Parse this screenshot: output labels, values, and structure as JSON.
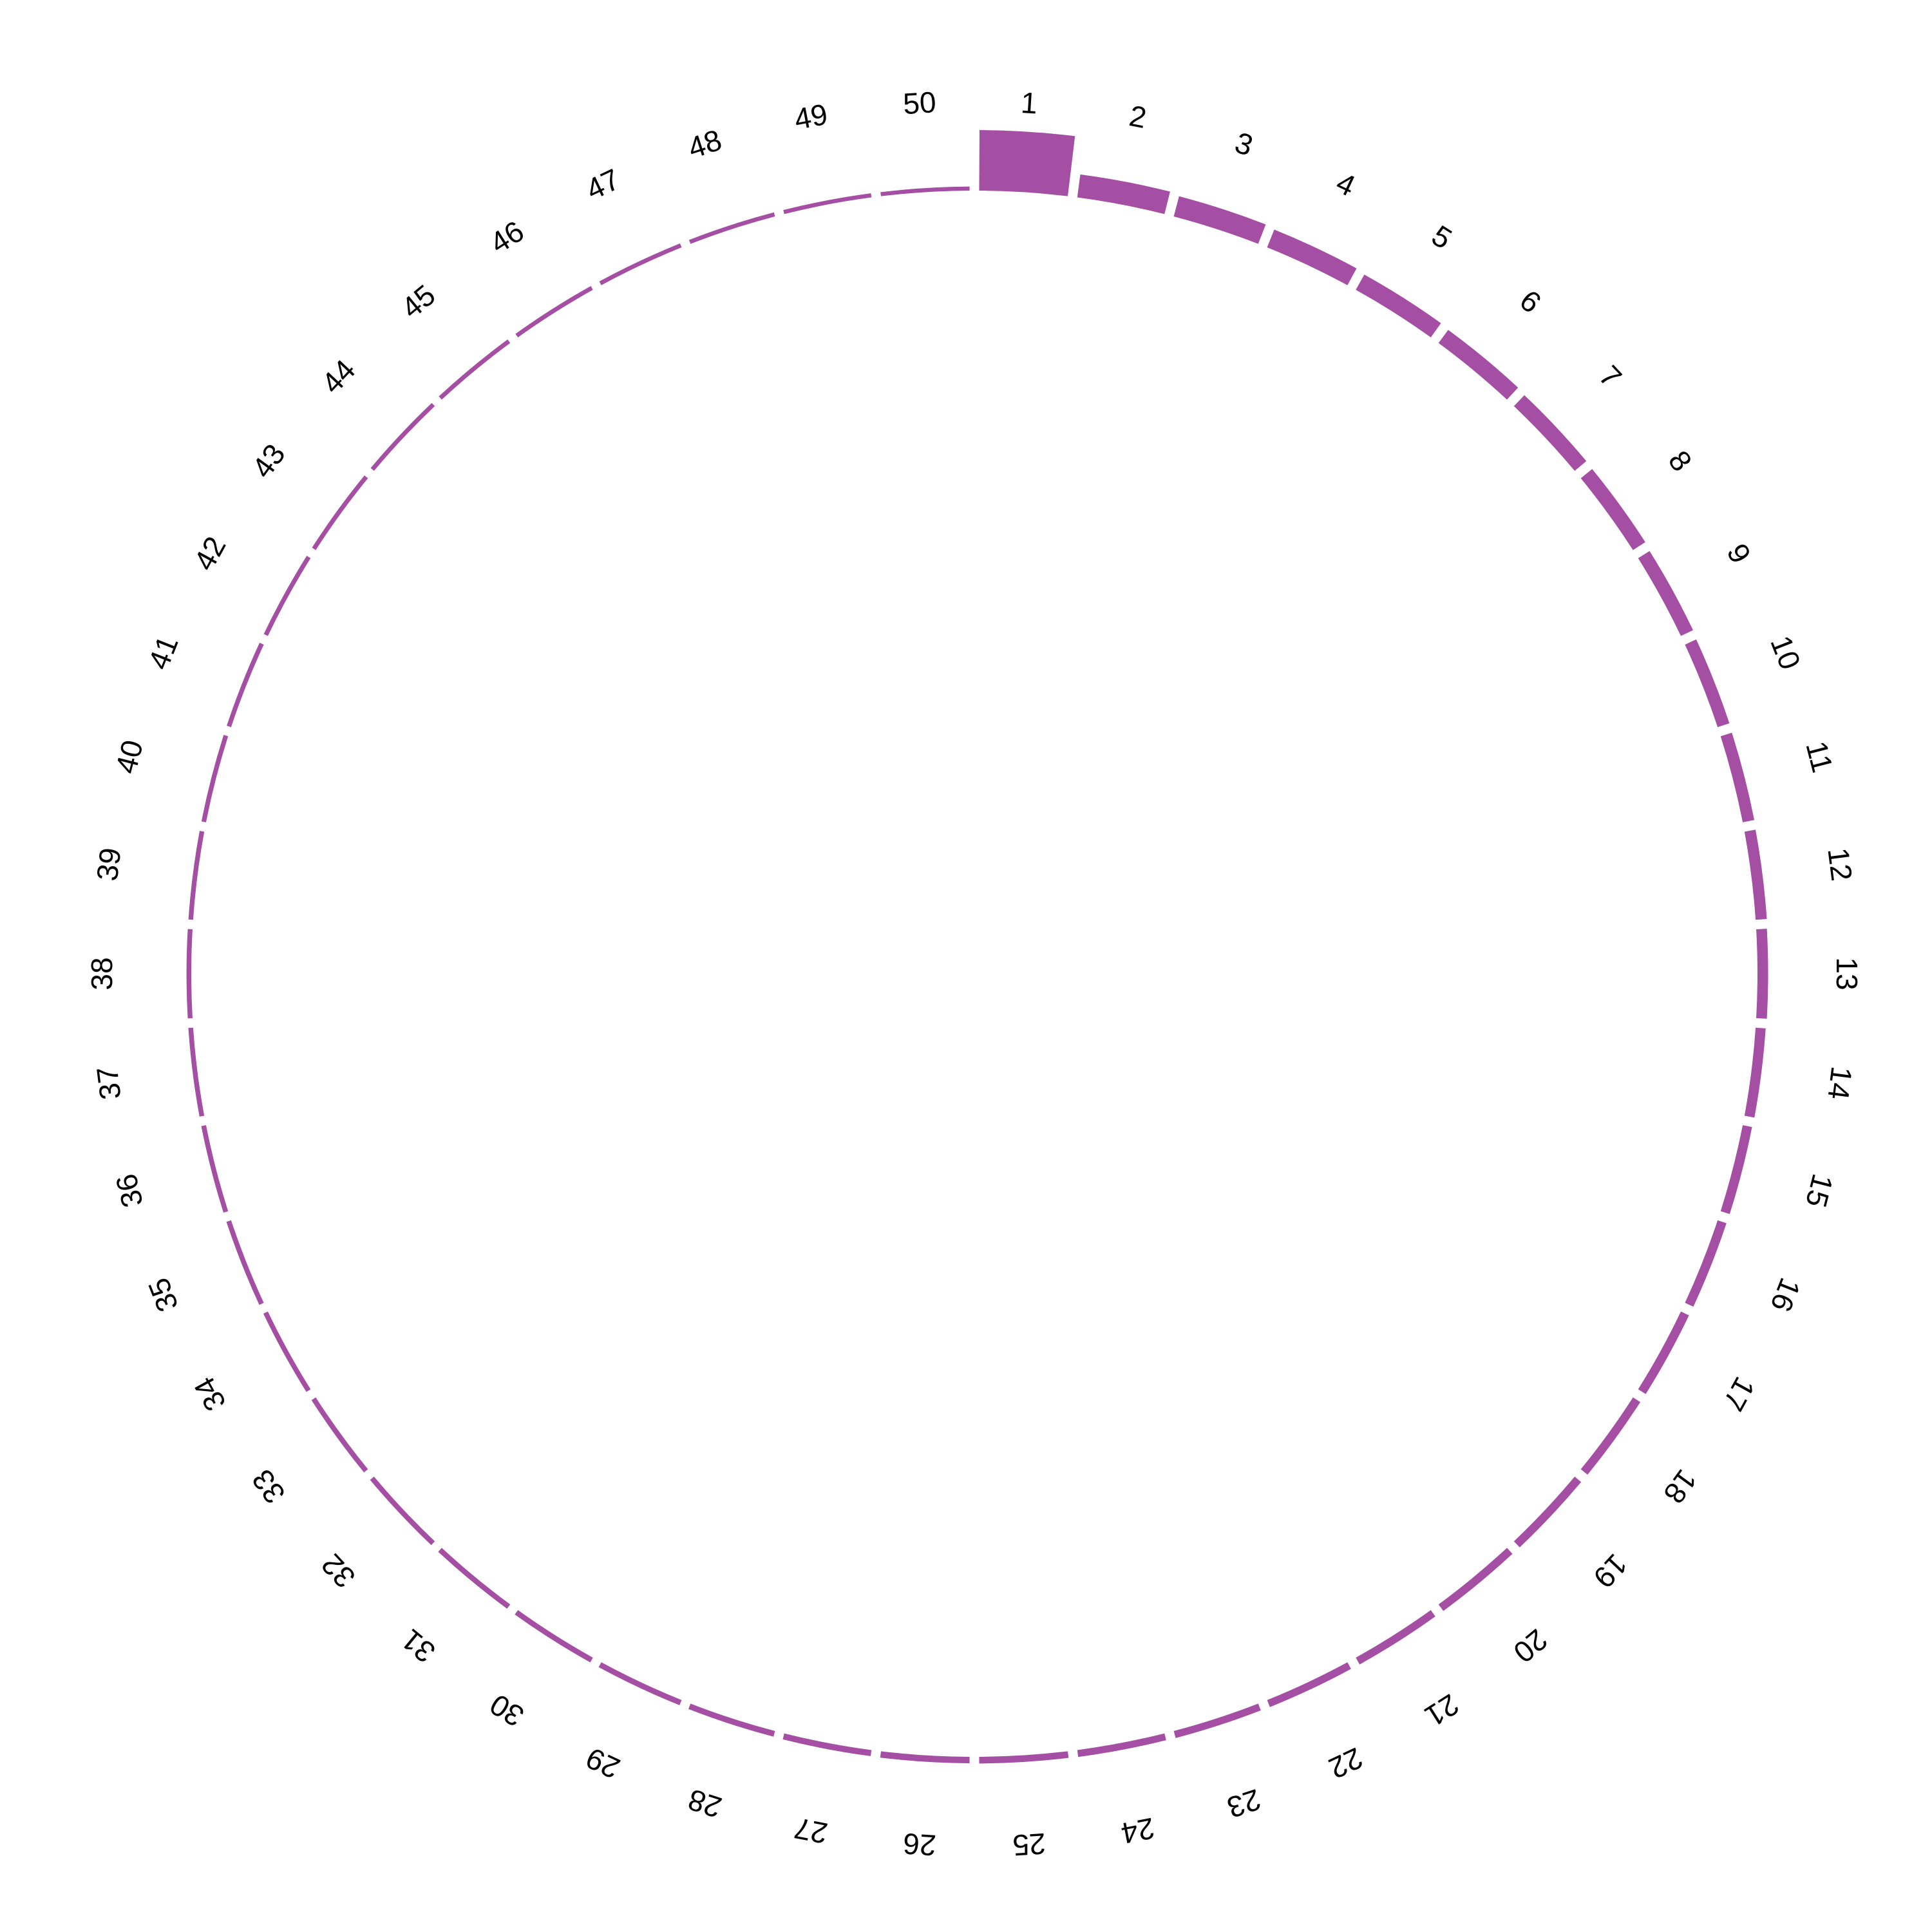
{
  "chart_data": {
    "type": "bar",
    "layout": "circular",
    "categories": [
      "1",
      "2",
      "3",
      "4",
      "5",
      "6",
      "7",
      "8",
      "9",
      "10",
      "11",
      "12",
      "13",
      "14",
      "15",
      "16",
      "17",
      "18",
      "19",
      "20",
      "21",
      "22",
      "23",
      "24",
      "25",
      "26",
      "27",
      "28",
      "29",
      "30",
      "31",
      "32",
      "33",
      "34",
      "35",
      "36",
      "37",
      "38",
      "39",
      "40",
      "41",
      "42",
      "43",
      "44",
      "45",
      "46",
      "47",
      "48",
      "49",
      "50"
    ],
    "series": [
      {
        "color": "#A44EA4",
        "values": [
          100,
          34,
          30,
          27,
          24,
          22,
          20,
          19,
          17,
          15,
          14,
          13,
          12,
          11,
          10,
          9.5,
          9,
          8.5,
          8,
          7.5,
          7,
          6.5,
          6,
          5.5,
          5,
          4.5,
          4,
          3.5,
          3,
          2.8,
          2.6,
          2.4,
          2.2,
          2,
          1.9,
          1.8,
          1.7,
          1.6,
          1.5,
          1.4,
          1.3,
          1.2,
          1.1,
          1,
          0.9,
          0.8,
          0.7,
          0.6,
          0.5,
          0.4
        ]
      }
    ],
    "title": "",
    "xlabel": "",
    "ylabel": "",
    "grid": false,
    "legend": "none"
  }
}
